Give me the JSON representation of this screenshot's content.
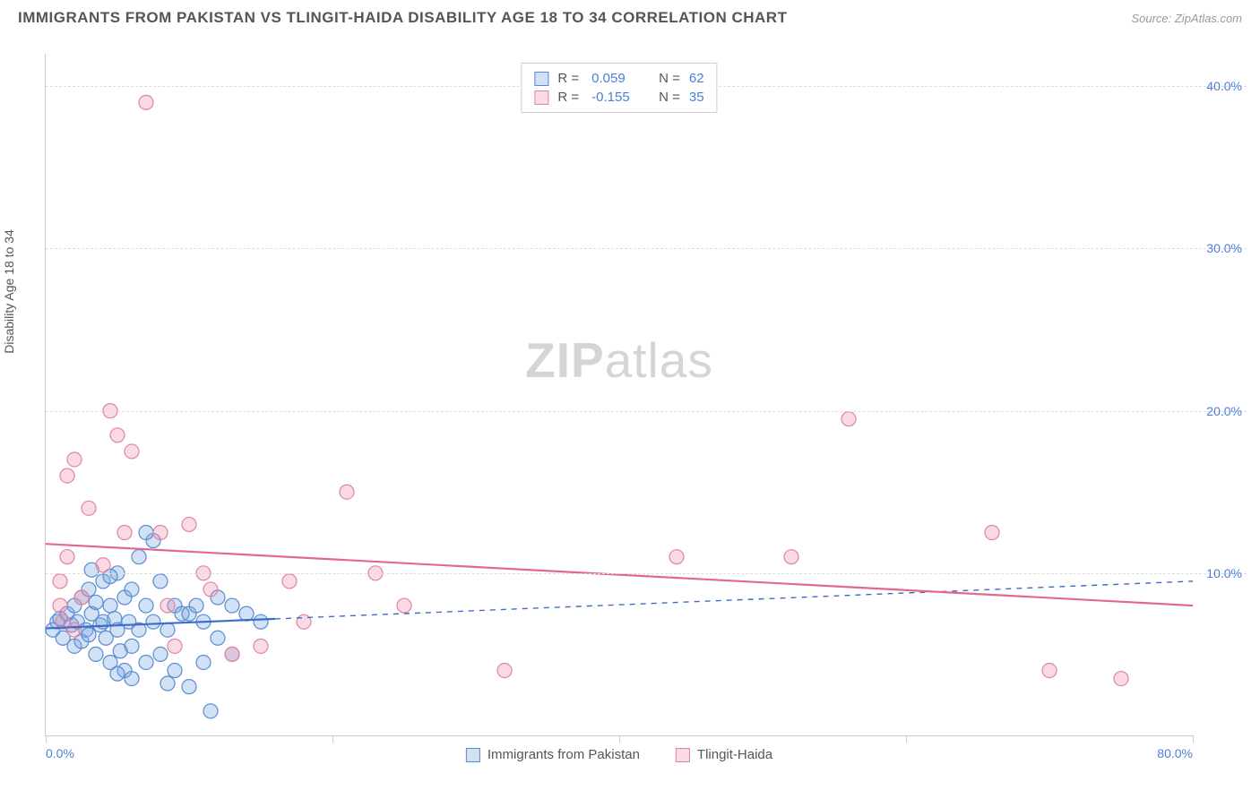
{
  "title": "IMMIGRANTS FROM PAKISTAN VS TLINGIT-HAIDA DISABILITY AGE 18 TO 34 CORRELATION CHART",
  "source": "Source: ZipAtlas.com",
  "watermark_bold": "ZIP",
  "watermark_rest": "atlas",
  "y_axis_title": "Disability Age 18 to 34",
  "chart": {
    "type": "scatter",
    "xlim": [
      0,
      80
    ],
    "ylim": [
      0,
      42
    ],
    "x_ticks": [
      0,
      20,
      40,
      60,
      80
    ],
    "x_tick_labels": [
      "0.0%",
      "",
      "",
      "",
      "80.0%"
    ],
    "y_ticks": [
      10,
      20,
      30,
      40
    ],
    "y_tick_labels": [
      "10.0%",
      "20.0%",
      "30.0%",
      "40.0%"
    ],
    "background_color": "#ffffff",
    "grid_color": "#dddddd",
    "axis_color": "#cccccc",
    "label_color": "#4a7fd8",
    "marker_radius": 8,
    "marker_stroke_width": 1.2,
    "line_width": 2.2,
    "series": [
      {
        "name": "Immigrants from Pakistan",
        "fill_color": "rgba(122,168,229,0.35)",
        "stroke_color": "#5a8bd0",
        "line_color": "#3d6cc8",
        "r": "0.059",
        "n": "62",
        "trend": {
          "x1": 0,
          "y1": 6.6,
          "x2": 80,
          "y2": 9.5,
          "solid_until_x": 16
        },
        "points": [
          [
            0.5,
            6.5
          ],
          [
            0.8,
            7.0
          ],
          [
            1.0,
            7.2
          ],
          [
            1.2,
            6.0
          ],
          [
            1.5,
            7.5
          ],
          [
            1.8,
            6.8
          ],
          [
            2.0,
            8.0
          ],
          [
            2.0,
            5.5
          ],
          [
            2.2,
            7.0
          ],
          [
            2.5,
            8.5
          ],
          [
            2.5,
            5.8
          ],
          [
            2.8,
            6.5
          ],
          [
            3.0,
            9.0
          ],
          [
            3.0,
            6.2
          ],
          [
            3.2,
            7.5
          ],
          [
            3.5,
            8.2
          ],
          [
            3.5,
            5.0
          ],
          [
            3.8,
            6.8
          ],
          [
            4.0,
            9.5
          ],
          [
            4.0,
            7.0
          ],
          [
            4.2,
            6.0
          ],
          [
            4.5,
            8.0
          ],
          [
            4.5,
            4.5
          ],
          [
            4.8,
            7.2
          ],
          [
            5.0,
            10.0
          ],
          [
            5.0,
            6.5
          ],
          [
            5.2,
            5.2
          ],
          [
            5.5,
            8.5
          ],
          [
            5.5,
            4.0
          ],
          [
            5.8,
            7.0
          ],
          [
            6.0,
            9.0
          ],
          [
            6.0,
            5.5
          ],
          [
            6.5,
            11.0
          ],
          [
            6.5,
            6.5
          ],
          [
            7.0,
            8.0
          ],
          [
            7.0,
            4.5
          ],
          [
            7.5,
            12.0
          ],
          [
            7.5,
            7.0
          ],
          [
            8.0,
            9.5
          ],
          [
            8.0,
            5.0
          ],
          [
            8.5,
            6.5
          ],
          [
            9.0,
            8.0
          ],
          [
            9.0,
            4.0
          ],
          [
            9.5,
            7.5
          ],
          [
            10.0,
            7.5
          ],
          [
            10.0,
            3.0
          ],
          [
            10.5,
            8.0
          ],
          [
            11.0,
            7.0
          ],
          [
            11.0,
            4.5
          ],
          [
            12.0,
            8.5
          ],
          [
            12.0,
            6.0
          ],
          [
            13.0,
            8.0
          ],
          [
            13.0,
            5.0
          ],
          [
            14.0,
            7.5
          ],
          [
            15.0,
            7.0
          ],
          [
            7.0,
            12.5
          ],
          [
            5.0,
            3.8
          ],
          [
            6.0,
            3.5
          ],
          [
            8.5,
            3.2
          ],
          [
            11.5,
            1.5
          ],
          [
            4.5,
            9.8
          ],
          [
            3.2,
            10.2
          ]
        ]
      },
      {
        "name": "Tlingit-Haida",
        "fill_color": "rgba(240,150,175,0.35)",
        "stroke_color": "#e085a0",
        "line_color": "#e36890",
        "r": "-0.155",
        "n": "35",
        "trend": {
          "x1": 0,
          "y1": 11.8,
          "x2": 80,
          "y2": 8.0,
          "solid_until_x": 80
        },
        "points": [
          [
            1.0,
            8.0
          ],
          [
            1.0,
            9.5
          ],
          [
            1.5,
            16.0
          ],
          [
            1.5,
            11.0
          ],
          [
            2.0,
            17.0
          ],
          [
            2.0,
            6.5
          ],
          [
            3.0,
            14.0
          ],
          [
            4.0,
            10.5
          ],
          [
            4.5,
            20.0
          ],
          [
            5.0,
            18.5
          ],
          [
            5.5,
            12.5
          ],
          [
            6.0,
            17.5
          ],
          [
            7.0,
            39.0
          ],
          [
            8.0,
            12.5
          ],
          [
            8.5,
            8.0
          ],
          [
            9.0,
            5.5
          ],
          [
            10.0,
            13.0
          ],
          [
            11.0,
            10.0
          ],
          [
            11.5,
            9.0
          ],
          [
            13.0,
            5.0
          ],
          [
            15.0,
            5.5
          ],
          [
            17.0,
            9.5
          ],
          [
            18.0,
            7.0
          ],
          [
            21.0,
            15.0
          ],
          [
            23.0,
            10.0
          ],
          [
            25.0,
            8.0
          ],
          [
            32.0,
            4.0
          ],
          [
            44.0,
            11.0
          ],
          [
            52.0,
            11.0
          ],
          [
            56.0,
            19.5
          ],
          [
            66.0,
            12.5
          ],
          [
            70.0,
            4.0
          ],
          [
            75.0,
            3.5
          ],
          [
            1.2,
            7.0
          ],
          [
            2.5,
            8.5
          ]
        ]
      }
    ]
  },
  "legend_top": [
    {
      "series_idx": 0,
      "r_label": "R =",
      "n_label": "N ="
    },
    {
      "series_idx": 1,
      "r_label": "R =",
      "n_label": "N ="
    }
  ],
  "legend_bottom": [
    {
      "series_idx": 0
    },
    {
      "series_idx": 1
    }
  ]
}
